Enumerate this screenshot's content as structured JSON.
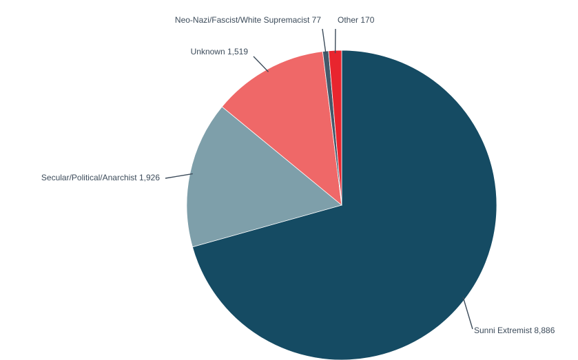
{
  "chart_data": {
    "type": "pie",
    "title": "",
    "start_angle_deg": 0,
    "direction": "clockwise",
    "slices": [
      {
        "label": "Sunni Extremist",
        "value": 8886,
        "value_text": "8,886",
        "color": "#154b63"
      },
      {
        "label": "Secular/Political/Anarchist",
        "value": 1926,
        "value_text": "1,926",
        "color": "#7e9faa"
      },
      {
        "label": "Unknown",
        "value": 1519,
        "value_text": "1,519",
        "color": "#ef6868"
      },
      {
        "label": "Neo-Nazi/Fascist/White Supremacist",
        "value": 77,
        "value_text": "77",
        "color": "#44596a"
      },
      {
        "label": "Other",
        "value": 170,
        "value_text": "170",
        "color": "#e8252e"
      }
    ]
  }
}
